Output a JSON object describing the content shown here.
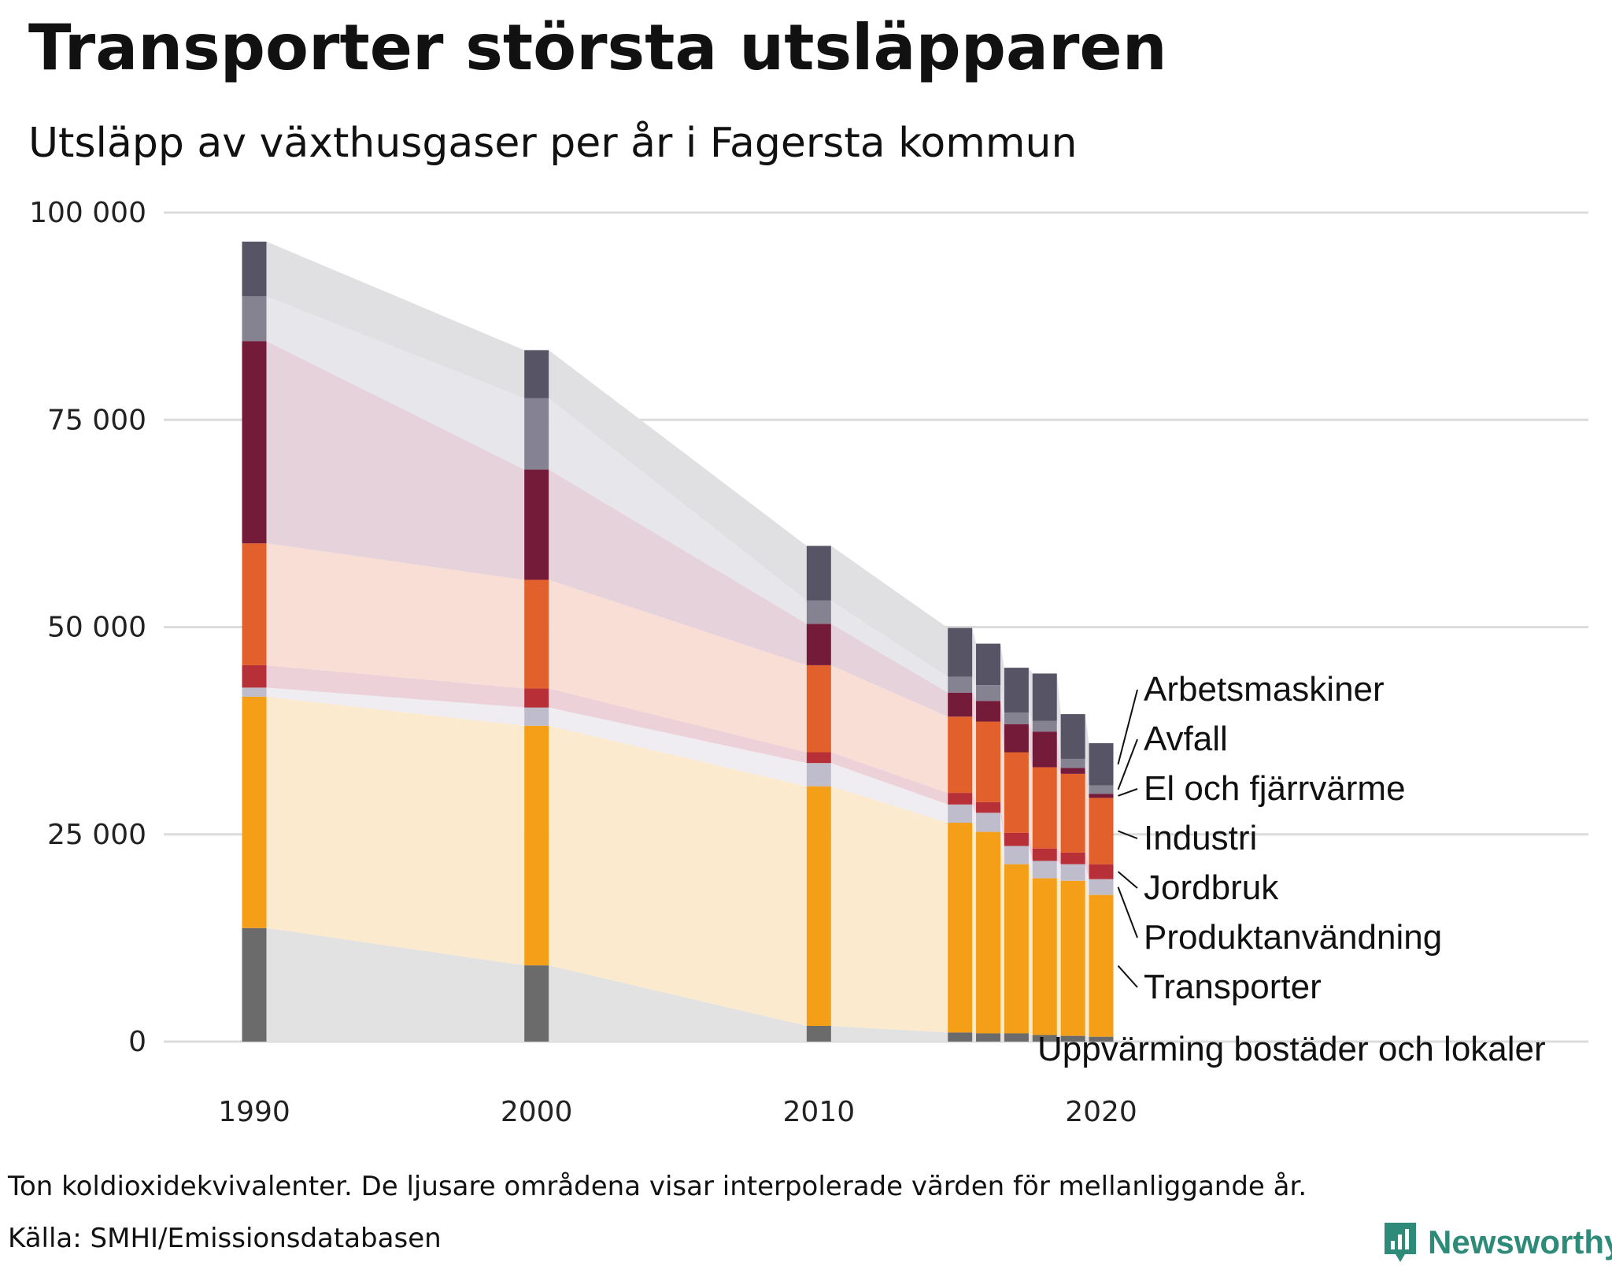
{
  "title": "Transporter största utsläpparen",
  "subtitle": "Utsläpp av växthusgaser per år i Fagersta kommun",
  "footnote": "Ton koldioxidekvivalenter. De ljusare områdena visar interpolerade värden för mellanliggande år.",
  "source": "Källa: SMHI/Emissionsdatabasen",
  "brand": "Newsworthy",
  "chart_data": {
    "type": "bar",
    "stacked": true,
    "title": "Transporter största utsläpparen",
    "subtitle": "Utsläpp av växthusgaser per år i Fagersta kommun",
    "xlabel": "",
    "ylabel": "",
    "unit": "Ton koldioxidekvivalenter",
    "ylim": [
      0,
      100000
    ],
    "grid": true,
    "y_ticks": [
      0,
      25000,
      50000,
      75000,
      100000
    ],
    "y_tick_labels": [
      "0",
      "25 000",
      "50 000",
      "75 000",
      "100 000"
    ],
    "x_ticks": [
      1990,
      2000,
      2010,
      2020
    ],
    "x_tick_labels": [
      "1990",
      "2000",
      "2010",
      "2020"
    ],
    "years": [
      1990,
      2000,
      2010,
      2015,
      2016,
      2017,
      2018,
      2019,
      2020
    ],
    "legend_position": "right (labels at end of bars)",
    "series": [
      {
        "name": "Uppvärming bostäder och lokaler",
        "color": "#6b6b6b",
        "band_color": "#e2e2e2",
        "values": [
          13700,
          9200,
          1900,
          1100,
          1000,
          1000,
          800,
          700,
          600
        ]
      },
      {
        "name": "Transporter",
        "color": "#f59f18",
        "band_color": "#fbeacd",
        "values": [
          27900,
          28900,
          28900,
          25300,
          24300,
          20400,
          18900,
          18700,
          17100
        ]
      },
      {
        "name": "Produktanvändning",
        "color": "#bfbccc",
        "band_color": "#efedf2",
        "values": [
          1100,
          2200,
          2800,
          2200,
          2300,
          2200,
          2100,
          2000,
          1900
        ]
      },
      {
        "name": "Jordbruk",
        "color": "#b73038",
        "band_color": "#ecd2d8",
        "values": [
          2700,
          2300,
          1300,
          1400,
          1300,
          1600,
          1500,
          1400,
          1800
        ]
      },
      {
        "name": "Industri",
        "color": "#e2602c",
        "band_color": "#f8ded5",
        "values": [
          14700,
          13100,
          10500,
          9200,
          9700,
          9700,
          9800,
          9500,
          8000
        ]
      },
      {
        "name": "El och fjärrvärme",
        "color": "#741b3a",
        "band_color": "#e5d2da",
        "values": [
          24400,
          13300,
          5000,
          2900,
          2500,
          3400,
          4300,
          700,
          500
        ]
      },
      {
        "name": "Avfall",
        "color": "#858391",
        "band_color": "#e7e6ea",
        "values": [
          5400,
          8600,
          2800,
          1900,
          1900,
          1400,
          1300,
          1100,
          1000
        ]
      },
      {
        "name": "Arbetsmaskiner",
        "color": "#575565",
        "band_color": "#e0dfe1",
        "values": [
          6600,
          5800,
          6600,
          5900,
          5000,
          5400,
          5700,
          5400,
          5100
        ]
      }
    ]
  }
}
